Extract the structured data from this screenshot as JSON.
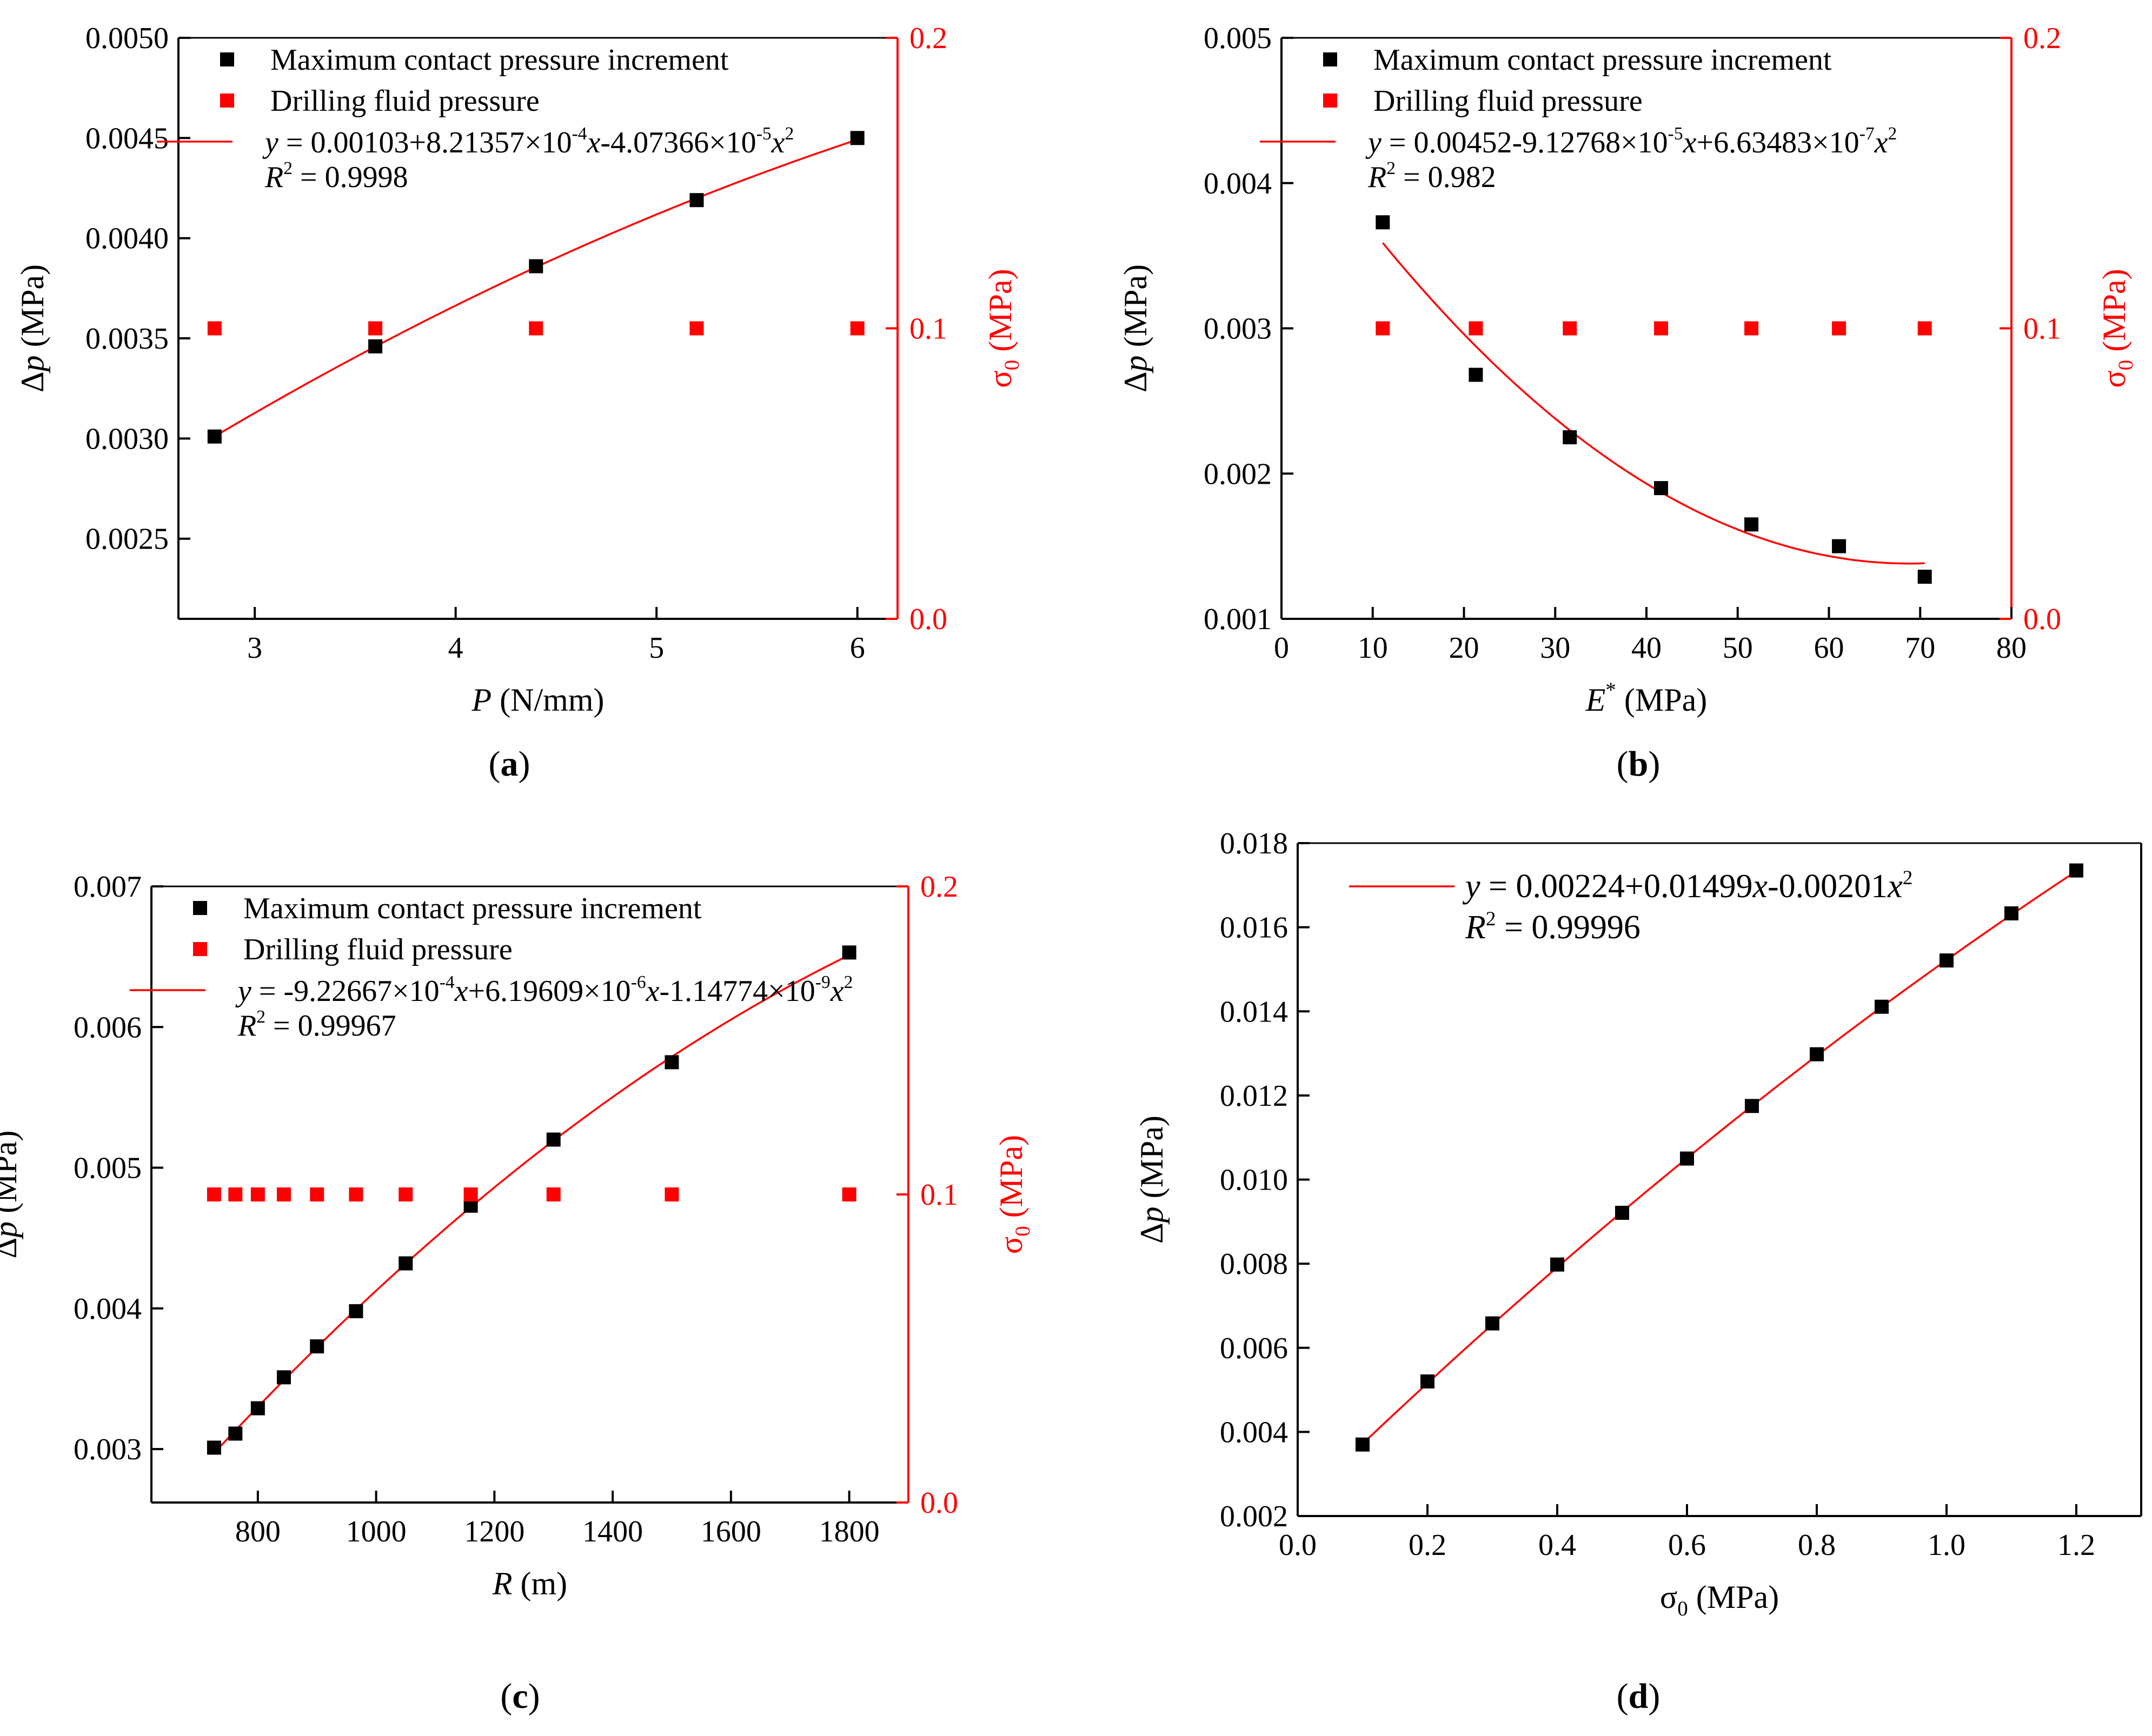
{
  "colors": {
    "axis": "#000000",
    "black_series": "#000000",
    "red_series": "#ff0000",
    "fit_line": "#ff0000"
  },
  "chart_data": [
    {
      "panel": "a",
      "caption": "(a)",
      "type": "scatter",
      "xlabel": {
        "var": "P",
        "unit": " (N/mm)"
      },
      "ylabel": {
        "delta": "Δ",
        "var": "p",
        "unit": " (MPa)"
      },
      "y2label": {
        "sym": "σ",
        "sub": "0",
        "unit": " (MPa)"
      },
      "xlim": [
        2.62,
        6.2
      ],
      "ylim": [
        0.0021,
        0.005
      ],
      "y2lim": [
        0,
        0.2
      ],
      "xticks": [
        3,
        4,
        5,
        6
      ],
      "xticklabels": [
        "3",
        "4",
        "5",
        "6"
      ],
      "yticks": [
        0.0025,
        0.003,
        0.0035,
        0.004,
        0.0045,
        0.005
      ],
      "yticklabels": [
        "0.0025",
        "0.0030",
        "0.0035",
        "0.0040",
        "0.0045",
        "0.0050"
      ],
      "y2ticks": [
        0,
        0.1,
        0.2
      ],
      "y2ticklabels": [
        "0.0",
        "0.1",
        "0.2"
      ],
      "series": [
        {
          "name": "Maximum contact pressure increment",
          "color": "#000000",
          "axis": "left",
          "x": [
            2.8,
            3.6,
            4.4,
            5.2,
            6.0
          ],
          "y": [
            0.00301,
            0.00346,
            0.00386,
            0.00419,
            0.0045
          ]
        },
        {
          "name": "Drilling fluid pressure",
          "color": "#ff0000",
          "axis": "right",
          "x": [
            2.8,
            3.6,
            4.4,
            5.2,
            6.0
          ],
          "y": [
            0.1,
            0.1,
            0.1,
            0.1,
            0.1
          ]
        }
      ],
      "fit": {
        "coef": [
          0.00103,
          0.000821357,
          -4.07366e-05
        ],
        "xrange": [
          2.8,
          6.0
        ],
        "eq": {
          "lead": "y",
          "p1": " = 0.00103+8.21357×10",
          "s1": "-4",
          "v1": "x",
          "p2": "-4.07366×10",
          "s2": "-5",
          "v2": "x",
          "s3": "2"
        },
        "r2": {
          "lead": "R",
          "sup": "2",
          "rest": " = 0.9998"
        }
      }
    },
    {
      "panel": "b",
      "caption": "(b)",
      "type": "scatter",
      "xlabel": {
        "var": "E",
        "sup": "*",
        "unit": " (MPa)"
      },
      "ylabel": {
        "delta": "Δ",
        "var": "p",
        "unit": " (MPa)"
      },
      "y2label": {
        "sym": "σ",
        "sub": "0",
        "unit": " (MPa)"
      },
      "xlim": [
        0,
        80
      ],
      "ylim": [
        0.001,
        0.005
      ],
      "y2lim": [
        0,
        0.2
      ],
      "xticks": [
        0,
        10,
        20,
        30,
        40,
        50,
        60,
        70,
        80
      ],
      "xticklabels": [
        "0",
        "10",
        "20",
        "30",
        "40",
        "50",
        "60",
        "70",
        "80"
      ],
      "yticks": [
        0.001,
        0.002,
        0.003,
        0.004,
        0.005
      ],
      "yticklabels": [
        "0.001",
        "0.002",
        "0.003",
        "0.004",
        "0.005"
      ],
      "y2ticks": [
        0,
        0.1,
        0.2
      ],
      "y2ticklabels": [
        "0.0",
        "0.1",
        "0.2"
      ],
      "series": [
        {
          "name": "Maximum contact pressure increment",
          "color": "#000000",
          "axis": "left",
          "x": [
            11.1,
            21.3,
            31.6,
            41.6,
            51.5,
            61.1,
            70.5
          ],
          "y": [
            0.00373,
            0.00268,
            0.00225,
            0.0019,
            0.00165,
            0.0015,
            0.00129
          ]
        },
        {
          "name": "Drilling fluid pressure",
          "color": "#ff0000",
          "axis": "right",
          "x": [
            11.1,
            21.3,
            31.6,
            41.6,
            51.5,
            61.1,
            70.5
          ],
          "y": [
            0.1,
            0.1,
            0.1,
            0.1,
            0.1,
            0.1,
            0.1
          ]
        }
      ],
      "fit": {
        "coef": [
          0.00452,
          -9.12768e-05,
          6.63483e-07
        ],
        "xrange": [
          11.1,
          70.5
        ],
        "eq": {
          "lead": "y",
          "p1": " = 0.00452-9.12768×10",
          "s1": "-5",
          "v1": "x",
          "p2": "+6.63483×10",
          "s2": "-7",
          "v2": "x",
          "s3": "2"
        },
        "r2": {
          "lead": "R",
          "sup": "2",
          "rest": " = 0.982"
        }
      }
    },
    {
      "panel": "c",
      "caption": "(c)",
      "type": "scatter",
      "xlabel": {
        "var": "R",
        "unit": " (m)"
      },
      "ylabel": {
        "delta": "Δ",
        "var": "p",
        "unit": " (MPa)"
      },
      "y2label": {
        "sym": "σ",
        "sub": "0",
        "unit": " (MPa)"
      },
      "xlim": [
        620,
        1900
      ],
      "ylim": [
        0.00262,
        0.007
      ],
      "y2lim": [
        0,
        0.2
      ],
      "xticks": [
        800,
        1000,
        1200,
        1400,
        1600,
        1800
      ],
      "xticklabels": [
        "800",
        "1000",
        "1200",
        "1400",
        "1600",
        "1800"
      ],
      "yticks": [
        0.003,
        0.004,
        0.005,
        0.006,
        0.007
      ],
      "yticklabels": [
        "0.003",
        "0.004",
        "0.005",
        "0.006",
        "0.007"
      ],
      "y2ticks": [
        0,
        0.1,
        0.2
      ],
      "y2ticklabels": [
        "0.0",
        "0.1",
        "0.2"
      ],
      "series": [
        {
          "name": "Maximum contact pressure increment",
          "color": "#000000",
          "axis": "left",
          "x": [
            726,
            762,
            800,
            844,
            900,
            966,
            1050,
            1160,
            1300,
            1500,
            1800
          ],
          "y": [
            0.00301,
            0.00311,
            0.00329,
            0.00351,
            0.00373,
            0.00398,
            0.00432,
            0.00473,
            0.0052,
            0.00575,
            0.00653
          ]
        },
        {
          "name": "Drilling fluid pressure",
          "color": "#ff0000",
          "axis": "right",
          "x": [
            726,
            762,
            800,
            844,
            900,
            966,
            1050,
            1160,
            1300,
            1500,
            1800
          ],
          "y": [
            0.1,
            0.1,
            0.1,
            0.1,
            0.1,
            0.1,
            0.1,
            0.1,
            0.1,
            0.1,
            0.1
          ]
        }
      ],
      "fit": {
        "coef": [
          -0.000922667,
          6.19609e-06,
          -1.14774e-09
        ],
        "xrange": [
          726,
          1800
        ],
        "eq": {
          "lead": "y",
          "p1": " = -9.22667×10",
          "s1": "-4",
          "v1": "x",
          "p2": "+6.19609×10",
          "s2": "-6",
          "v2": "x",
          "p3": "-1.14774×10",
          "s4": "-9",
          "v3": "x",
          "s3": "2"
        },
        "r2": {
          "lead": "R",
          "sup": "2",
          "rest": " = 0.99967"
        }
      }
    },
    {
      "panel": "d",
      "caption": "(d)",
      "type": "scatter",
      "xlabel": {
        "sym": "σ",
        "sub": "0",
        "unit": " (MPa)"
      },
      "ylabel": {
        "delta": "Δ",
        "var": "p",
        "unit": " (MPa)"
      },
      "xlim": [
        0,
        1.3
      ],
      "ylim": [
        0.002,
        0.018
      ],
      "xticks": [
        0,
        0.2,
        0.4,
        0.6,
        0.8,
        1.0,
        1.2
      ],
      "xticklabels": [
        "0.0",
        "0.2",
        "0.4",
        "0.6",
        "0.8",
        "1.0",
        "1.2"
      ],
      "yticks": [
        0.002,
        0.004,
        0.006,
        0.008,
        0.01,
        0.012,
        0.014,
        0.016,
        0.018
      ],
      "yticklabels": [
        "0.002",
        "0.004",
        "0.006",
        "0.008",
        "0.010",
        "0.012",
        "0.014",
        "0.016",
        "0.018"
      ],
      "series": [
        {
          "name": "Maximum contact pressure increment",
          "color": "#000000",
          "axis": "left",
          "x": [
            0.1,
            0.2,
            0.3,
            0.4,
            0.5,
            0.6,
            0.7,
            0.8,
            0.9,
            1.0,
            1.1,
            1.2
          ],
          "y": [
            0.0037,
            0.0052,
            0.00658,
            0.00798,
            0.00921,
            0.0105,
            0.01175,
            0.01298,
            0.01411,
            0.01521,
            0.01633,
            0.01735
          ]
        }
      ],
      "fit": {
        "coef": [
          0.00224,
          0.01499,
          -0.00201
        ],
        "xrange": [
          0.1,
          1.2
        ],
        "eq": {
          "lead": "y",
          "p1": " = 0.00224+0.01499",
          "v1": "x",
          "p2": "-0.00201",
          "v2": "x",
          "s3": "2"
        },
        "r2": {
          "lead": "R",
          "sup": "2",
          "rest": " = 0.99996"
        }
      }
    }
  ]
}
